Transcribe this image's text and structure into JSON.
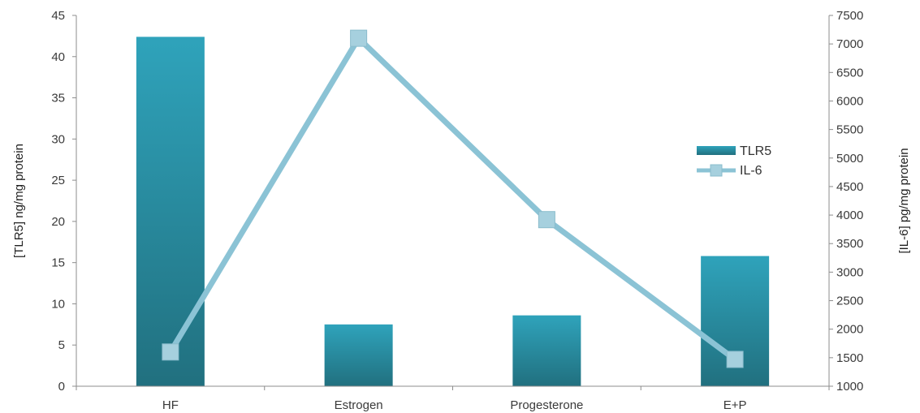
{
  "chart_data": {
    "type": "bar",
    "categories": [
      "HF",
      "Estrogen",
      "Progesterone",
      "E+P"
    ],
    "title": "",
    "xlabel": "",
    "ylabel": "[TLR5] ng/mg protein",
    "y2label": "[IL-6] pg/mg protein",
    "ylim": [
      0,
      45
    ],
    "y2lim": [
      1000,
      7500
    ],
    "yticks": [
      "0",
      "5",
      "10",
      "15",
      "20",
      "25",
      "30",
      "35",
      "40",
      "45"
    ],
    "y2ticks": [
      "1000",
      "1500",
      "2000",
      "2500",
      "3000",
      "3500",
      "4000",
      "4500",
      "5000",
      "5500",
      "6000",
      "6500",
      "7000",
      "7500"
    ],
    "grid": false,
    "legend_position": "right",
    "series": [
      {
        "name": "TLR5",
        "type": "bar",
        "axis": "left",
        "color": "#2a8fa6",
        "values": [
          42.4,
          7.5,
          8.6,
          15.8
        ]
      },
      {
        "name": "IL-6",
        "type": "line",
        "axis": "right",
        "marker": "square",
        "color": "#8bc3d5",
        "values": [
          1600,
          7100,
          3920,
          1470
        ]
      }
    ]
  }
}
